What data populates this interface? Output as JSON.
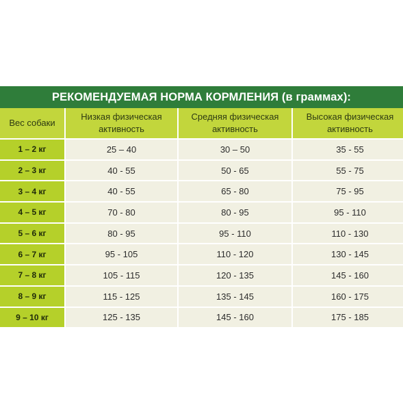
{
  "title": "РЕКОМЕНДУЕМАЯ НОРМА КОРМЛЕНИЯ (в граммах):",
  "colors": {
    "title_bg": "#2f7d3a",
    "header_bg": "#c2d63c",
    "weight_bg": "#b5d02a",
    "cell_bg": "#f1f0e2"
  },
  "columns": {
    "weight": "Вес собаки",
    "low_line1": "Низкая физическая",
    "low_line2": "активность",
    "mid_line1": "Средняя физическая",
    "mid_line2": "активность",
    "high_line1": "Высокая физическая",
    "high_line2": "активность"
  },
  "rows": [
    {
      "weight": "1 – 2 кг",
      "low": "25 – 40",
      "mid": "30 – 50",
      "high": "35 - 55"
    },
    {
      "weight": "2 – 3 кг",
      "low": "40 - 55",
      "mid": "50 - 65",
      "high": "55 - 75"
    },
    {
      "weight": "3 – 4 кг",
      "low": "40 - 55",
      "mid": "65 - 80",
      "high": "75 - 95"
    },
    {
      "weight": "4 – 5 кг",
      "low": "70 - 80",
      "mid": "80 - 95",
      "high": "95 - 110"
    },
    {
      "weight": "5 – 6 кг",
      "low": "80 - 95",
      "mid": "95 - 110",
      "high": "110 - 130"
    },
    {
      "weight": "6 – 7 кг",
      "low": "95 - 105",
      "mid": "110 - 120",
      "high": "130 - 145"
    },
    {
      "weight": "7 – 8 кг",
      "low": "105 - 115",
      "mid": "120 - 135",
      "high": "145 - 160"
    },
    {
      "weight": "8 – 9 кг",
      "low": "115 - 125",
      "mid": "135 - 145",
      "high": "160 - 175"
    },
    {
      "weight": "9 – 10 кг",
      "low": "125 - 135",
      "mid": "145 - 160",
      "high": "175 - 185"
    }
  ]
}
